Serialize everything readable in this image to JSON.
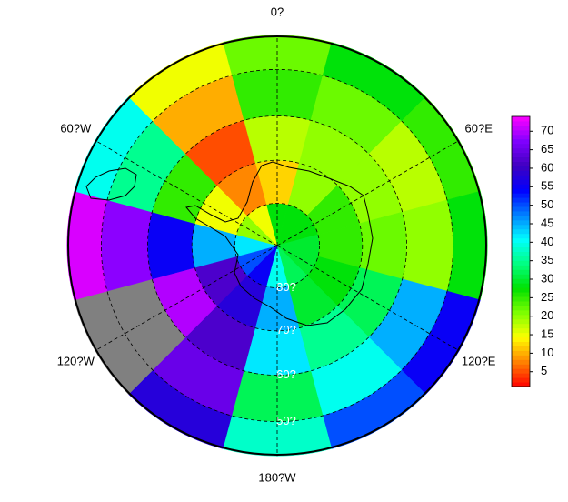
{
  "chart_data": {
    "type": "polar-heatmap",
    "lon_edges": [
      -15,
      15,
      45,
      75,
      105,
      135,
      165,
      195,
      225,
      255,
      285,
      315,
      345
    ],
    "lat_edges": [
      90,
      80,
      70,
      60,
      50,
      43
    ],
    "values": [
      [
        28,
        12,
        18,
        25,
        22
      ],
      [
        28,
        20,
        20,
        22,
        28
      ],
      [
        28,
        25,
        20,
        18,
        25
      ],
      [
        30,
        25,
        22,
        20,
        28
      ],
      [
        30,
        28,
        32,
        45,
        55
      ],
      [
        32,
        30,
        35,
        40,
        50
      ],
      [
        40,
        45,
        42,
        32,
        38
      ],
      [
        55,
        58,
        62,
        65,
        58
      ],
      [
        50,
        62,
        70,
        null,
        null
      ],
      [
        42,
        45,
        55,
        68,
        72
      ],
      [
        20,
        15,
        25,
        35,
        40
      ],
      [
        15,
        8,
        5,
        10,
        15
      ]
    ],
    "missing_color": "#808080",
    "colormap": [
      "#ff0000",
      "#ff8000",
      "#ffff00",
      "#80ff00",
      "#00e000",
      "#00ff80",
      "#00ffff",
      "#0080ff",
      "#0000ff",
      "#4000c0",
      "#8000ff",
      "#ff00ff"
    ],
    "zlim": [
      1,
      74
    ],
    "cbar_ticks": [
      5,
      10,
      15,
      20,
      25,
      30,
      35,
      40,
      45,
      50,
      55,
      60,
      65,
      70
    ],
    "lat_rings": [
      {
        "value": 80,
        "label": "80?"
      },
      {
        "value": 70,
        "label": "70?"
      },
      {
        "value": 60,
        "label": "60?"
      },
      {
        "value": 50,
        "label": "50?"
      }
    ],
    "lon_labels": [
      {
        "value": 0,
        "label": "0?"
      },
      {
        "value": 60,
        "label": "60?E"
      },
      {
        "value": 120,
        "label": "120?E"
      },
      {
        "value": 180,
        "label": "180?W"
      },
      {
        "value": 240,
        "label": "120?W"
      },
      {
        "value": 300,
        "label": "60?W"
      }
    ]
  }
}
